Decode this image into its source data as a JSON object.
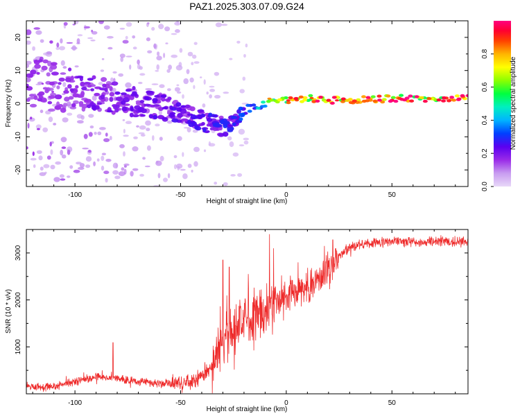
{
  "title": "PAZ1.2025.303.07.09.G24",
  "chart_data": [
    {
      "type": "heatmap",
      "xlabel": "Height of straight line (km)",
      "ylabel": "Frequency (Hz)",
      "xlim": [
        -123,
        86
      ],
      "ylim": [
        -25,
        25
      ],
      "xticks": [
        -100,
        -50,
        0,
        50
      ],
      "yticks": [
        -20,
        -10,
        0,
        10,
        20
      ],
      "colorbar": {
        "label": "Normalized spectral amplitude",
        "range": [
          0,
          1
        ],
        "ticks": [
          0.0,
          0.2,
          0.4,
          0.6,
          0.8
        ],
        "colors": [
          "#e8d8f8",
          "#c89cf0",
          "#9a2be8",
          "#5a00f0",
          "#0040ff",
          "#00b4ff",
          "#00f0c0",
          "#00ff40",
          "#8cff00",
          "#ffff00",
          "#ffb400",
          "#ff4000",
          "#ff0030",
          "#ff0080"
        ]
      },
      "ridge": [
        {
          "x": -110,
          "y": 6,
          "amp": 0.15,
          "spread": 8
        },
        {
          "x": -100,
          "y": 4,
          "amp": 0.18,
          "spread": 6
        },
        {
          "x": -90,
          "y": 3,
          "amp": 0.2,
          "spread": 5
        },
        {
          "x": -80,
          "y": 2,
          "amp": 0.2,
          "spread": 5
        },
        {
          "x": -70,
          "y": 0,
          "amp": 0.2,
          "spread": 4
        },
        {
          "x": -60,
          "y": -1,
          "amp": 0.22,
          "spread": 4
        },
        {
          "x": -50,
          "y": -3,
          "amp": 0.22,
          "spread": 3
        },
        {
          "x": -40,
          "y": -5,
          "amp": 0.24,
          "spread": 3
        },
        {
          "x": -30,
          "y": -7,
          "amp": 0.25,
          "spread": 3
        },
        {
          "x": -25,
          "y": -6,
          "amp": 0.25,
          "spread": 2
        },
        {
          "x": -20,
          "y": -2,
          "amp": 0.3,
          "spread": 1.5
        },
        {
          "x": -15,
          "y": -1,
          "amp": 0.35,
          "spread": 1.2
        },
        {
          "x": -10,
          "y": 0,
          "amp": 0.5,
          "spread": 1
        },
        {
          "x": -5,
          "y": 1.5,
          "amp": 0.6,
          "spread": 1
        },
        {
          "x": 0,
          "y": 1,
          "amp": 0.8,
          "spread": 1
        },
        {
          "x": 10,
          "y": 1.5,
          "amp": 0.85,
          "spread": 1
        },
        {
          "x": 25,
          "y": 1,
          "amp": 0.9,
          "spread": 1
        },
        {
          "x": 50,
          "y": 1.5,
          "amp": 0.9,
          "spread": 1
        },
        {
          "x": 86,
          "y": 1.5,
          "amp": 0.95,
          "spread": 1
        }
      ]
    },
    {
      "type": "line",
      "xlabel": "Height of straight line (km)",
      "ylabel": "SNR (10 * v/v)",
      "xlim": [
        -123,
        86
      ],
      "ylim": [
        0,
        3500
      ],
      "xticks": [
        -100,
        -50,
        0,
        50
      ],
      "yticks": [
        1000,
        2000,
        3000
      ],
      "series": [
        {
          "name": "SNR",
          "color": "#ee2a2a",
          "x": [
            -123,
            -110,
            -100,
            -90,
            -80,
            -70,
            -60,
            -50,
            -45,
            -40,
            -35,
            -30,
            -28,
            -25,
            -20,
            -15,
            -10,
            -5,
            0,
            5,
            10,
            15,
            20,
            25,
            30,
            35,
            40,
            50,
            60,
            70,
            86
          ],
          "y": [
            150,
            150,
            260,
            360,
            330,
            260,
            230,
            230,
            270,
            360,
            600,
            1100,
            1400,
            1300,
            1550,
            1700,
            1800,
            1950,
            2050,
            2150,
            2250,
            2400,
            2700,
            2950,
            3100,
            3180,
            3200,
            3250,
            3230,
            3250,
            3230
          ],
          "spikes": [
            {
              "x": -82,
              "y": 1090
            },
            {
              "x": -30,
              "y": 2850
            },
            {
              "x": -27,
              "y": 2700
            },
            {
              "x": -18,
              "y": 2550
            },
            {
              "x": -8,
              "y": 3400
            },
            {
              "x": -6,
              "y": 3100
            },
            {
              "x": 18,
              "y": 3150
            },
            {
              "x": 22,
              "y": 3280
            }
          ]
        }
      ]
    }
  ]
}
